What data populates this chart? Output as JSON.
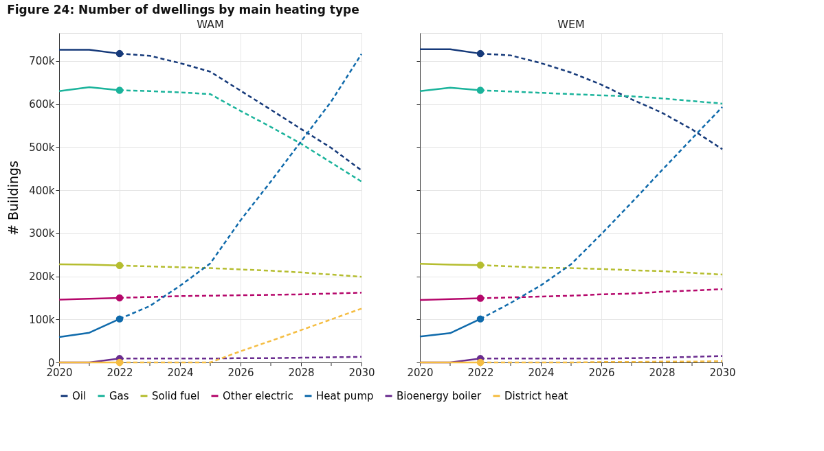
{
  "chart_data": [
    {
      "type": "line",
      "title": "Figure 24: Number of dwellings by main heating type",
      "subtitle": "WAM",
      "ylabel": "# Buildings",
      "xlim": [
        2020,
        2030
      ],
      "xticks": [
        2020,
        {
          "value": 2021,
          "label": null
        },
        2022,
        {
          "value": 2023,
          "label": null
        },
        2024,
        {
          "value": 2025,
          "label": null
        },
        2026,
        {
          "value": 2027,
          "label": null
        },
        2028,
        {
          "value": 2029,
          "label": null
        },
        2030
      ],
      "ylim": [
        0,
        765000
      ],
      "yticks": [
        0,
        {
          "value": 100000,
          "label": "100k"
        },
        {
          "value": 200000,
          "label": "200k"
        },
        {
          "value": 300000,
          "label": "300k"
        },
        {
          "value": 400000,
          "label": "400k"
        },
        {
          "value": 500000,
          "label": "500k"
        },
        {
          "value": 600000,
          "label": "600k"
        },
        {
          "value": 700000,
          "label": "700k"
        }
      ],
      "grid": true,
      "legend": "bottom",
      "series": [
        {
          "name": "Oil",
          "color": "#163a7a",
          "line_style": "solid",
          "x": [
            2020,
            2021,
            2022
          ],
          "values": [
            726000,
            726000,
            717000
          ]
        },
        {
          "color": "#163a7a",
          "line_style": "dashed",
          "x": [
            2022,
            2023,
            2024,
            2025,
            2026,
            2027,
            2028,
            2029,
            2030
          ],
          "values": [
            717000,
            712000,
            695000,
            675000,
            631000,
            587000,
            542000,
            498000,
            446000
          ]
        },
        {
          "type": "scatter",
          "marker": "circle",
          "color": "#163a7a",
          "x": [
            2022
          ],
          "values": [
            717000
          ]
        },
        {
          "name": "Gas",
          "color": "#1ab39b",
          "line_style": "solid",
          "x": [
            2020,
            2021,
            2022
          ],
          "values": [
            630000,
            639000,
            632000
          ]
        },
        {
          "color": "#1ab39b",
          "line_style": "dashed",
          "x": [
            2022,
            2023,
            2024,
            2025,
            2026,
            2027,
            2028,
            2029,
            2030
          ],
          "values": [
            632000,
            630000,
            627000,
            623000,
            584000,
            547000,
            508000,
            464000,
            420000
          ]
        },
        {
          "type": "scatter",
          "marker": "circle",
          "color": "#1ab39b",
          "x": [
            2022
          ],
          "values": [
            632000
          ]
        },
        {
          "name": "Solid fuel",
          "color": "#b5bd2f",
          "line_style": "solid",
          "x": [
            2020,
            2021,
            2022
          ],
          "values": [
            228000,
            227000,
            225000
          ]
        },
        {
          "color": "#b5bd2f",
          "line_style": "dashed",
          "x": [
            2022,
            2023,
            2024,
            2025,
            2026,
            2027,
            2028,
            2029,
            2030
          ],
          "values": [
            225000,
            223000,
            221000,
            219000,
            216000,
            213000,
            209000,
            204000,
            199000
          ]
        },
        {
          "type": "scatter",
          "marker": "circle",
          "color": "#b5bd2f",
          "x": [
            2022
          ],
          "values": [
            225000
          ]
        },
        {
          "name": "Other electric",
          "color": "#b5076b",
          "line_style": "solid",
          "x": [
            2020,
            2021,
            2022
          ],
          "values": [
            146000,
            148000,
            150000
          ]
        },
        {
          "color": "#b5076b",
          "line_style": "dashed",
          "x": [
            2022,
            2023,
            2024,
            2025,
            2026,
            2027,
            2028,
            2029,
            2030
          ],
          "values": [
            150000,
            152000,
            154000,
            155000,
            156000,
            157000,
            158000,
            160000,
            162000
          ]
        },
        {
          "type": "scatter",
          "marker": "circle",
          "color": "#b5076b",
          "x": [
            2022
          ],
          "values": [
            150000
          ]
        },
        {
          "name": "Heat pump",
          "color": "#0f6aab",
          "line_style": "solid",
          "x": [
            2020,
            2021,
            2022
          ],
          "values": [
            59000,
            69000,
            101000
          ]
        },
        {
          "color": "#0f6aab",
          "line_style": "dashed",
          "x": [
            2022,
            2023,
            2024,
            2025,
            2026,
            2027,
            2028,
            2029,
            2030
          ],
          "values": [
            101000,
            131000,
            178000,
            230000,
            330000,
            420000,
            513000,
            606000,
            716000
          ]
        },
        {
          "type": "scatter",
          "marker": "circle",
          "color": "#0f6aab",
          "x": [
            2022
          ],
          "values": [
            101000
          ]
        },
        {
          "name": "Bioenergy boiler",
          "color": "#6a2c8f",
          "line_style": "solid",
          "x": [
            2020,
            2021,
            2022
          ],
          "values": [
            0,
            0,
            9000
          ]
        },
        {
          "color": "#6a2c8f",
          "line_style": "dashed",
          "x": [
            2022,
            2023,
            2024,
            2025,
            2026,
            2027,
            2028,
            2029,
            2030
          ],
          "values": [
            9000,
            9000,
            9000,
            9000,
            10000,
            10000,
            11000,
            12000,
            13000
          ]
        },
        {
          "type": "scatter",
          "marker": "circle",
          "color": "#6a2c8f",
          "x": [
            2022
          ],
          "values": [
            9000
          ]
        },
        {
          "name": "District heat",
          "color": "#f5bd42",
          "line_style": "solid",
          "x": [
            2020,
            2021,
            2022
          ],
          "values": [
            0,
            0,
            0
          ]
        },
        {
          "color": "#f5bd42",
          "line_style": "dashed",
          "x": [
            2022,
            2023,
            2024,
            2025,
            2026,
            2027,
            2028,
            2029,
            2030
          ],
          "values": [
            0,
            0,
            0,
            0,
            26000,
            50000,
            75000,
            100000,
            125000
          ]
        },
        {
          "type": "scatter",
          "marker": "circle",
          "color": "#f5bd42",
          "x": [
            2022
          ],
          "values": [
            0
          ]
        }
      ]
    },
    {
      "type": "line",
      "subtitle": "WEM",
      "tick_labels": "x",
      "xlim": [
        2020,
        2030
      ],
      "xticks": [
        2020,
        {
          "value": 2021,
          "label": null
        },
        2022,
        {
          "value": 2023,
          "label": null
        },
        2024,
        {
          "value": 2025,
          "label": null
        },
        2026,
        {
          "value": 2027,
          "label": null
        },
        2028,
        {
          "value": 2029,
          "label": null
        },
        2030
      ],
      "ylim": [
        0,
        765000
      ],
      "yticks": [
        {
          "value": 0,
          "label": null
        },
        {
          "value": 100000,
          "label": null
        },
        {
          "value": 200000,
          "label": null
        },
        {
          "value": 300000,
          "label": null
        },
        {
          "value": 400000,
          "label": null
        },
        {
          "value": 500000,
          "label": null
        },
        {
          "value": 600000,
          "label": null
        },
        {
          "value": 700000,
          "label": null
        }
      ],
      "grid": true,
      "legend": "bottom",
      "series": [
        {
          "name": "Oil",
          "color": "#163a7a",
          "line_style": "solid",
          "x": [
            2020,
            2021,
            2022
          ],
          "values": [
            727000,
            727000,
            717000
          ]
        },
        {
          "color": "#163a7a",
          "line_style": "dashed",
          "x": [
            2022,
            2023,
            2024,
            2025,
            2026,
            2027,
            2028,
            2029,
            2030
          ],
          "values": [
            717000,
            713000,
            695000,
            673000,
            645000,
            611000,
            580000,
            541000,
            495000
          ]
        },
        {
          "type": "scatter",
          "marker": "circle",
          "color": "#163a7a",
          "x": [
            2022
          ],
          "values": [
            717000
          ]
        },
        {
          "name": "Gas",
          "color": "#1ab39b",
          "line_style": "solid",
          "x": [
            2020,
            2021,
            2022
          ],
          "values": [
            630000,
            638000,
            632000
          ]
        },
        {
          "color": "#1ab39b",
          "line_style": "dashed",
          "x": [
            2022,
            2023,
            2024,
            2025,
            2026,
            2027,
            2028,
            2029,
            2030
          ],
          "values": [
            632000,
            629000,
            626000,
            623000,
            620000,
            618000,
            613000,
            607000,
            601000
          ]
        },
        {
          "type": "scatter",
          "marker": "circle",
          "color": "#1ab39b",
          "x": [
            2022
          ],
          "values": [
            632000
          ]
        },
        {
          "name": "Solid fuel",
          "color": "#b5bd2f",
          "line_style": "solid",
          "x": [
            2020,
            2021,
            2022
          ],
          "values": [
            229000,
            227000,
            226000
          ]
        },
        {
          "color": "#b5bd2f",
          "line_style": "dashed",
          "x": [
            2022,
            2023,
            2024,
            2025,
            2026,
            2027,
            2028,
            2029,
            2030
          ],
          "values": [
            226000,
            223000,
            220000,
            219000,
            217000,
            214000,
            212000,
            208000,
            204000
          ]
        },
        {
          "type": "scatter",
          "marker": "circle",
          "color": "#b5bd2f",
          "x": [
            2022
          ],
          "values": [
            226000
          ]
        },
        {
          "name": "Other electric",
          "color": "#b5076b",
          "line_style": "solid",
          "x": [
            2020,
            2021,
            2022
          ],
          "values": [
            145000,
            147000,
            149000
          ]
        },
        {
          "color": "#b5076b",
          "line_style": "dashed",
          "x": [
            2022,
            2023,
            2024,
            2025,
            2026,
            2027,
            2028,
            2029,
            2030
          ],
          "values": [
            149000,
            151000,
            153000,
            155000,
            158000,
            160000,
            164000,
            167000,
            170000
          ]
        },
        {
          "type": "scatter",
          "marker": "circle",
          "color": "#b5076b",
          "x": [
            2022
          ],
          "values": [
            149000
          ]
        },
        {
          "name": "Heat pump",
          "color": "#0f6aab",
          "line_style": "solid",
          "x": [
            2020,
            2021,
            2022
          ],
          "values": [
            60000,
            68000,
            101000
          ]
        },
        {
          "color": "#0f6aab",
          "line_style": "dashed",
          "x": [
            2022,
            2023,
            2024,
            2025,
            2026,
            2027,
            2028,
            2029,
            2030
          ],
          "values": [
            101000,
            138000,
            179000,
            228000,
            298000,
            371000,
            446000,
            520000,
            593000
          ]
        },
        {
          "type": "scatter",
          "marker": "circle",
          "color": "#0f6aab",
          "x": [
            2022
          ],
          "values": [
            101000
          ]
        },
        {
          "name": "Bioenergy boiler",
          "color": "#6a2c8f",
          "line_style": "solid",
          "x": [
            2020,
            2021,
            2022
          ],
          "values": [
            0,
            0,
            9000
          ]
        },
        {
          "color": "#6a2c8f",
          "line_style": "dashed",
          "x": [
            2022,
            2023,
            2024,
            2025,
            2026,
            2027,
            2028,
            2029,
            2030
          ],
          "values": [
            9000,
            9000,
            9000,
            9000,
            9000,
            10000,
            11000,
            13000,
            15000
          ]
        },
        {
          "type": "scatter",
          "marker": "circle",
          "color": "#6a2c8f",
          "x": [
            2022
          ],
          "values": [
            9000
          ]
        },
        {
          "name": "District heat",
          "color": "#f5bd42",
          "line_style": "solid",
          "x": [
            2020,
            2021,
            2022
          ],
          "values": [
            0,
            0,
            0
          ]
        },
        {
          "color": "#f5bd42",
          "line_style": "dashed",
          "x": [
            2022,
            2023,
            2024,
            2025,
            2026,
            2027,
            2028,
            2029,
            2030
          ],
          "values": [
            0,
            0,
            0,
            0,
            1000,
            1000,
            2000,
            2000,
            3000
          ]
        },
        {
          "type": "scatter",
          "marker": "circle",
          "color": "#f5bd42",
          "x": [
            2022
          ],
          "values": [
            0
          ]
        }
      ]
    }
  ]
}
